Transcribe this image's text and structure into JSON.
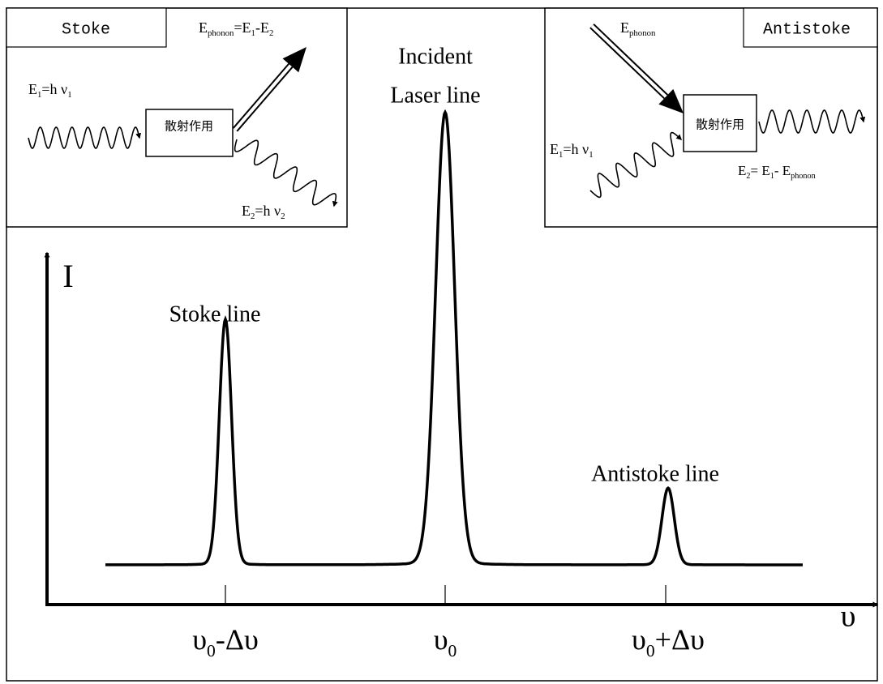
{
  "stoke_panel": {
    "tab": "Stoke",
    "phonon_eq": [
      "E",
      "phonon",
      "=E",
      "1",
      "-E",
      "2"
    ],
    "e1": [
      "E",
      "1",
      "=h ν",
      "1"
    ],
    "process": "散射作用",
    "e2": [
      "E",
      "2",
      "=h ν",
      "2"
    ]
  },
  "center_label": {
    "line1": "Incident",
    "line2": "Laser line"
  },
  "antistoke_panel": {
    "tab": "Antistoke",
    "phonon": [
      "E",
      "phonon"
    ],
    "e1": [
      "E",
      "1",
      "=h ν",
      "1"
    ],
    "process": "散射作用",
    "e2": [
      "E",
      "2",
      "= E",
      "1",
      "- E",
      "phonon"
    ]
  },
  "axes": {
    "y_label": "I",
    "x_label": "υ"
  },
  "peak_labels": {
    "stoke": "Stoke line",
    "antistoke": "Antistoke line"
  },
  "x_ticks": [
    [
      "υ",
      "0",
      "-Δυ"
    ],
    [
      "υ",
      "0"
    ],
    [
      "υ",
      "0",
      "+Δυ"
    ]
  ]
}
